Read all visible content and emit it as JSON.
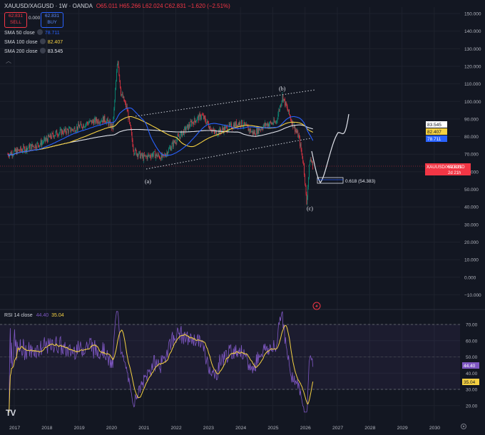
{
  "header": {
    "symbol": "XAUUSD/XAGUSD · 1W · OANDA",
    "ohlc": "O65.011 H65.266 L62.024 C62.831 −1.620 (−2.51%)"
  },
  "order": {
    "sell_price": "62.831",
    "sell_label": "SELL",
    "spread": "0.000",
    "buy_price": "62.831",
    "buy_label": "BUY"
  },
  "indicators": [
    {
      "label": "SMA 50 close",
      "value": "78.711",
      "color": "#2962ff"
    },
    {
      "label": "SMA 100 close",
      "value": "82.407",
      "color": "#f5d142"
    },
    {
      "label": "SMA 200 close",
      "value": "83.545",
      "color": "#e0e3eb"
    }
  ],
  "rsi": {
    "label": "RSI 14 close",
    "value": "44.40",
    "ma_value": "35.04"
  },
  "icons": {
    "collapse": "chevron-up-icon",
    "logo": "tradingview-logo",
    "settings": "gear-icon",
    "flash": "lightning-icon"
  },
  "colors": {
    "background": "#131722",
    "up": "#089981",
    "down": "#f23645",
    "rsi": "#7e57c2",
    "rsi_ma": "#f5d142"
  },
  "chart_data": [
    {
      "type": "line",
      "title": "XAUUSD/XAGUSD · 1W · OANDA",
      "x_ticks": [
        "2017",
        "2018",
        "2019",
        "2020",
        "2021",
        "2022",
        "2023",
        "2024",
        "2025",
        "2026",
        "2027",
        "2028",
        "2029",
        "2030"
      ],
      "y_ticks": [
        "150.000",
        "140.000",
        "130.000",
        "120.000",
        "110.000",
        "100.000",
        "90.000",
        "80.000",
        "70.000",
        "60.000",
        "50.000",
        "40.000",
        "30.000",
        "20.000",
        "10.000",
        "0.000",
        "−10.000"
      ],
      "ylim": [
        -10,
        150
      ],
      "series": [
        {
          "name": "XAUUSD/XAGUSD",
          "x": [
            2016.8,
            2017.3,
            2017.8,
            2018.3,
            2018.8,
            2019.3,
            2019.8,
            2020.05,
            2020.2,
            2020.3,
            2020.5,
            2020.7,
            2021.0,
            2021.3,
            2021.6,
            2022.0,
            2022.5,
            2022.8,
            2023.2,
            2023.6,
            2024.0,
            2024.4,
            2024.8,
            2025.1,
            2025.3,
            2025.6,
            2025.8,
            2025.95,
            2026.05,
            2026.15,
            2026.25
          ],
          "y": [
            70,
            73,
            76,
            82,
            84,
            88,
            90,
            85,
            125,
            105,
            95,
            72,
            68,
            70,
            68,
            78,
            88,
            92,
            82,
            85,
            88,
            82,
            87,
            88,
            103,
            88,
            80,
            65,
            42,
            68,
            63
          ]
        }
      ],
      "sma": [
        {
          "name": "SMA 50 close",
          "value": "78.711"
        },
        {
          "name": "SMA 100 close",
          "value": "82.407"
        },
        {
          "name": "SMA 200 close",
          "value": "83.545"
        }
      ],
      "price_label": {
        "symbol": "XAUUSD/XAGUSD",
        "value": "62.831",
        "countdown": "2d 21h"
      },
      "annotations": [
        {
          "text": "(a)",
          "x": 2021.1,
          "y": 55
        },
        {
          "text": "(b)",
          "x": 2025.2,
          "y": 107
        },
        {
          "text": "(c)",
          "x": 2026.05,
          "y": 38
        },
        {
          "text": "0.618 (54.383)",
          "x": 2026.5,
          "y": 54.383
        }
      ]
    },
    {
      "type": "line",
      "title": "RSI 14 close",
      "y_ticks": [
        "70.00",
        "60.00",
        "50.00",
        "40.00",
        "30.00",
        "20.00"
      ],
      "ylim": [
        15,
        75
      ],
      "bands": [
        70,
        50,
        30
      ],
      "series": [
        {
          "name": "RSI 14 close",
          "value": "44.40"
        },
        {
          "name": "RSI MA",
          "value": "35.04"
        }
      ]
    }
  ]
}
